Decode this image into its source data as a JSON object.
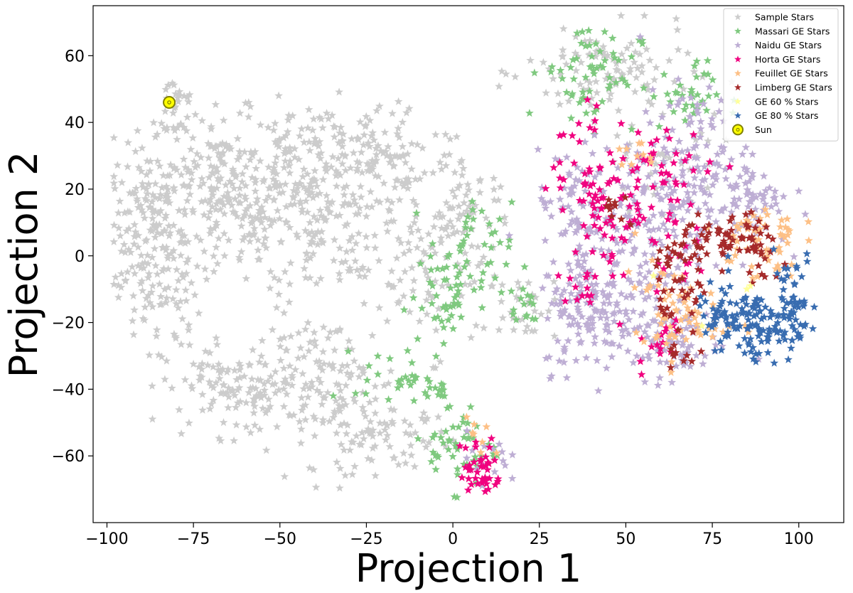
{
  "chart_data": {
    "type": "scatter",
    "title": "",
    "xlabel": "Projection 1",
    "ylabel": "Projection 2",
    "xlim": [
      -104,
      113
    ],
    "ylim": [
      -80,
      75
    ],
    "xticks": [
      -100,
      -75,
      -50,
      -25,
      0,
      25,
      50,
      75,
      100
    ],
    "yticks": [
      -60,
      -40,
      -20,
      0,
      20,
      40,
      60
    ],
    "grid": false,
    "legend_position": "top-right",
    "series": [
      {
        "name": "Sample Stars",
        "color": "#cccccc",
        "marker": "star",
        "clusters": [
          {
            "cx": -88,
            "cy": 10,
            "sx": 5,
            "sy": 11,
            "n": 130
          },
          {
            "cx": -80,
            "cy": 45,
            "sx": 3,
            "sy": 6,
            "n": 30
          },
          {
            "cx": -68,
            "cy": 25,
            "sx": 10,
            "sy": 9,
            "n": 140
          },
          {
            "cx": -55,
            "cy": 10,
            "sx": 15,
            "sy": 10,
            "n": 170
          },
          {
            "cx": -40,
            "cy": 30,
            "sx": 12,
            "sy": 8,
            "n": 110
          },
          {
            "cx": -20,
            "cy": 28,
            "sx": 13,
            "sy": 9,
            "n": 110
          },
          {
            "cx": -30,
            "cy": 5,
            "sx": 12,
            "sy": 10,
            "n": 90
          },
          {
            "cx": -85,
            "cy": -12,
            "sx": 6,
            "sy": 8,
            "n": 60
          },
          {
            "cx": -60,
            "cy": -40,
            "sx": 12,
            "sy": 7,
            "n": 140
          },
          {
            "cx": -35,
            "cy": -38,
            "sx": 10,
            "sy": 10,
            "n": 110
          },
          {
            "cx": -20,
            "cy": -55,
            "sx": 10,
            "sy": 5,
            "n": 70
          },
          {
            "cx": -5,
            "cy": -5,
            "sx": 7,
            "sy": 12,
            "n": 70
          },
          {
            "cx": 5,
            "cy": 15,
            "sx": 6,
            "sy": 5,
            "n": 40
          },
          {
            "cx": 45,
            "cy": 55,
            "sx": 12,
            "sy": 7,
            "n": 100
          },
          {
            "cx": 60,
            "cy": 30,
            "sx": 10,
            "sy": 8,
            "n": 40
          },
          {
            "cx": 20,
            "cy": -15,
            "sx": 5,
            "sy": 5,
            "n": 30
          }
        ]
      },
      {
        "name": "Massari GE Stars",
        "color": "#7fc97f",
        "marker": "star",
        "clusters": [
          {
            "cx": 40,
            "cy": 55,
            "sx": 7,
            "sy": 8,
            "n": 60
          },
          {
            "cx": 67,
            "cy": 48,
            "sx": 5,
            "sy": 5,
            "n": 35
          },
          {
            "cx": 5,
            "cy": 0,
            "sx": 6,
            "sy": 8,
            "n": 50
          },
          {
            "cx": -2,
            "cy": -15,
            "sx": 5,
            "sy": 7,
            "n": 35
          },
          {
            "cx": -18,
            "cy": -36,
            "sx": 5,
            "sy": 4,
            "n": 25
          },
          {
            "cx": 3,
            "cy": -58,
            "sx": 5,
            "sy": 6,
            "n": 50
          },
          {
            "cx": 20,
            "cy": -15,
            "sx": 3,
            "sy": 4,
            "n": 15
          },
          {
            "cx": -5,
            "cy": -40,
            "sx": 3,
            "sy": 3,
            "n": 15
          }
        ]
      },
      {
        "name": "Naidu GE Stars",
        "color": "#beaed4",
        "marker": "star",
        "clusters": [
          {
            "cx": 40,
            "cy": -15,
            "sx": 7,
            "sy": 10,
            "n": 150
          },
          {
            "cx": 55,
            "cy": 10,
            "sx": 10,
            "sy": 12,
            "n": 160
          },
          {
            "cx": 70,
            "cy": 30,
            "sx": 8,
            "sy": 10,
            "n": 100
          },
          {
            "cx": 85,
            "cy": 15,
            "sx": 6,
            "sy": 6,
            "n": 60
          },
          {
            "cx": 62,
            "cy": -25,
            "sx": 8,
            "sy": 6,
            "n": 90
          },
          {
            "cx": 35,
            "cy": 15,
            "sx": 5,
            "sy": 8,
            "n": 60
          },
          {
            "cx": 10,
            "cy": -60,
            "sx": 3,
            "sy": 4,
            "n": 15
          }
        ]
      },
      {
        "name": "Horta GE Stars",
        "color": "#f0027f",
        "marker": "star",
        "clusters": [
          {
            "cx": 40,
            "cy": 25,
            "sx": 6,
            "sy": 10,
            "n": 50
          },
          {
            "cx": 48,
            "cy": 12,
            "sx": 6,
            "sy": 6,
            "n": 30
          },
          {
            "cx": 62,
            "cy": 28,
            "sx": 7,
            "sy": 5,
            "n": 35
          },
          {
            "cx": 42,
            "cy": -5,
            "sx": 6,
            "sy": 5,
            "n": 20
          },
          {
            "cx": 8,
            "cy": -64,
            "sx": 3,
            "sy": 5,
            "n": 40
          },
          {
            "cx": 62,
            "cy": 5,
            "sx": 4,
            "sy": 8,
            "n": 25
          },
          {
            "cx": 60,
            "cy": -25,
            "sx": 4,
            "sy": 5,
            "n": 15
          }
        ]
      },
      {
        "name": "Feuillet GE Stars",
        "color": "#fdc086",
        "marker": "star",
        "clusters": [
          {
            "cx": 88,
            "cy": 5,
            "sx": 6,
            "sy": 6,
            "n": 60
          },
          {
            "cx": 70,
            "cy": -20,
            "sx": 6,
            "sy": 5,
            "n": 40
          },
          {
            "cx": 60,
            "cy": -10,
            "sx": 5,
            "sy": 8,
            "n": 25
          },
          {
            "cx": 52,
            "cy": 28,
            "sx": 3,
            "sy": 3,
            "n": 10
          },
          {
            "cx": 8,
            "cy": -55,
            "sx": 2,
            "sy": 3,
            "n": 8
          }
        ]
      },
      {
        "name": "Limberg GE Stars",
        "color": "#a52a2a",
        "marker": "star",
        "clusters": [
          {
            "cx": 77,
            "cy": 5,
            "sx": 6,
            "sy": 4,
            "n": 45
          },
          {
            "cx": 65,
            "cy": 0,
            "sx": 4,
            "sy": 3,
            "n": 20
          },
          {
            "cx": 68,
            "cy": -12,
            "sx": 4,
            "sy": 4,
            "n": 25
          },
          {
            "cx": 88,
            "cy": 0,
            "sx": 5,
            "sy": 5,
            "n": 30
          },
          {
            "cx": 68,
            "cy": -30,
            "sx": 3,
            "sy": 2,
            "n": 10
          },
          {
            "cx": 47,
            "cy": 13,
            "sx": 3,
            "sy": 3,
            "n": 10
          }
        ]
      },
      {
        "name": "GE 60 % Stars",
        "color": "#ffff99",
        "marker": "star",
        "points": [
          [
            86,
            -9
          ],
          [
            85,
            -10
          ],
          [
            72,
            -21
          ],
          [
            58,
            -6
          ]
        ]
      },
      {
        "name": "GE 80 % Stars",
        "color": "#386cb0",
        "marker": "star",
        "clusters": [
          {
            "cx": 82,
            "cy": -20,
            "sx": 6,
            "sy": 6,
            "n": 90
          },
          {
            "cx": 97,
            "cy": -13,
            "sx": 4,
            "sy": 7,
            "n": 60
          },
          {
            "cx": 90,
            "cy": -23,
            "sx": 4,
            "sy": 4,
            "n": 30
          }
        ]
      }
    ],
    "sun": {
      "name": "Sun",
      "x": -82,
      "y": 46,
      "edgecolor": "#808000",
      "facecolor": "#ffff00"
    }
  }
}
